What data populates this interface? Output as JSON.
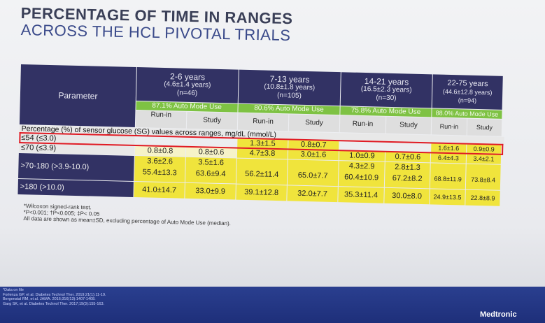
{
  "title_line1": "PERCENTAGE OF TIME IN RANGES",
  "title_line2": "ACROSS THE HCL PIVOTAL TRIALS",
  "table": {
    "param_header": "Parameter",
    "groups": [
      {
        "age": "2-6 years",
        "mean": "(4.6±1.4 years)",
        "n": "(n=46)",
        "auto": "87.1% Auto Mode Use"
      },
      {
        "age": "7-13 years",
        "mean": "(10.8±1.8 years)",
        "n": "(n=105)",
        "auto": "80.6% Auto Mode Use"
      },
      {
        "age": "14-21 years",
        "mean": "(16.5±2.3 years)",
        "n": "(n=30)",
        "auto": "75.8% Auto Mode Use"
      },
      {
        "age": "22-75 years",
        "mean": "(44.6±12.8 years)",
        "n": "(n=94)",
        "auto": "88.0% Auto Mode Use"
      }
    ],
    "runin": "Run-in",
    "study": "Study",
    "banner": "Percentage (%) of sensor glucose (SG) values across ranges, mg/dL (mmol/L)",
    "rows": [
      {
        "label": "≤54 (≤3.0)",
        "cells": [
          "",
          "",
          "1.3±1.5",
          "0.8±0.7",
          "",
          "",
          "1.6±1.6",
          "0.9±0.9"
        ]
      },
      {
        "label": "≤70 (≤3.9)",
        "cells": [
          "0.8±0.8",
          "0.8±0.6",
          "4.7±3.8",
          "3.0±1.6",
          "1.0±0.9",
          "0.7±0.6",
          "6.4±4.3",
          "3.4±2.1"
        ]
      },
      {
        "label": ">70-180 (>3.9-10.0)",
        "cells": [
          "55.4±13.3",
          "63.6±9.4",
          "56.2±11.4",
          "65.0±7.7",
          "60.4±10.9",
          "67.2±8.2",
          "68.8±11.9",
          "73.8±8.4"
        ]
      },
      {
        "label": ">180 (>10.0)",
        "cells": [
          "41.0±14.7",
          "33.0±9.9",
          "39.1±12.8",
          "32.0±7.7",
          "35.3±11.4",
          "30.0±8.0",
          "24.9±13.5",
          "22.8±8.9"
        ]
      }
    ],
    "row2_group1": [
      "3.6±2.6",
      "3.5±1.6"
    ],
    "row2_group3": [
      "4.3±2.9",
      "2.8±1.3"
    ]
  },
  "footnotes": [
    "*Wilcoxon signed-rank test.",
    "*P<0.001; †P<0.005; ‡P< 0.05",
    "All data are shown as mean±SD, excluding percentage of Auto Mode Use (median)."
  ],
  "references": [
    "*Data on file",
    "Forlenza GP, et al. Diabetes Technol Ther. 2019;21(1):11-19.",
    "Bergenstal RM, et al. JAMA. 2016;316(13):1407-1408.",
    "Garg SK, et al. Diabetes Technol Ther. 2017;19(3):155-163."
  ],
  "brand": "Medtronic",
  "colors": {
    "header": "#323264",
    "auto_mode": "#7ec243",
    "highlight": "#f0e43c",
    "red_box": "#e01b24",
    "footer": "#1e2f7a"
  }
}
